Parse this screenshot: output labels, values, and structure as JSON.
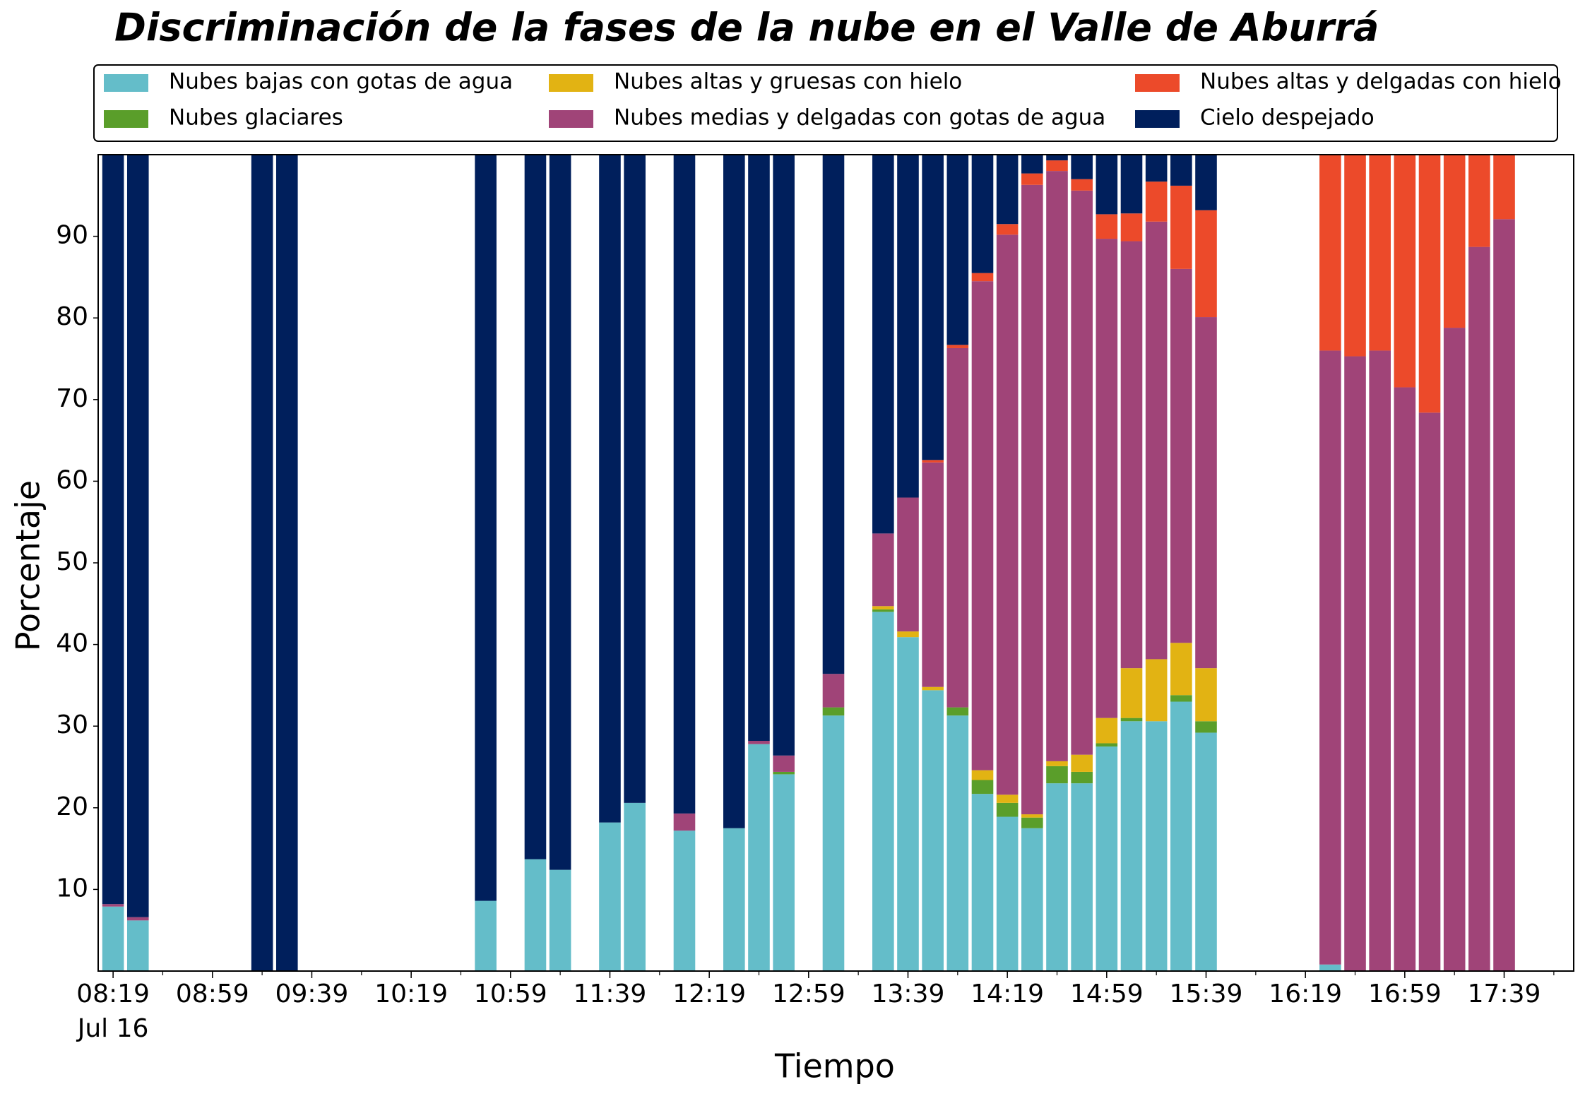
{
  "chart_data": {
    "type": "stacked-bar",
    "title": "Discriminación de la fases de la nube en el Valle de Aburrá",
    "xlabel": "Tiempo",
    "ylabel": "Porcentaje",
    "x": [
      "08:19",
      "08:29",
      "09:19",
      "09:29",
      "10:49",
      "11:09",
      "11:19",
      "11:39",
      "11:49",
      "12:09",
      "12:29",
      "12:39",
      "12:49",
      "13:09",
      "13:29",
      "13:39",
      "13:49",
      "13:59",
      "14:09",
      "14:19",
      "14:29",
      "14:39",
      "14:49",
      "14:59",
      "15:09",
      "15:19",
      "15:29",
      "15:39",
      "16:29",
      "16:39",
      "16:49",
      "16:59",
      "17:09",
      "17:19",
      "17:29",
      "17:39"
    ],
    "x_date_label": "Jul 16",
    "xlim": [
      "08:13",
      "18:07"
    ],
    "xticks": [
      "08:19",
      "08:59",
      "09:39",
      "10:19",
      "10:59",
      "11:39",
      "12:19",
      "12:59",
      "13:39",
      "14:19",
      "14:59",
      "15:39",
      "16:19",
      "16:59",
      "17:39"
    ],
    "ylim": [
      0,
      100
    ],
    "yticks": [
      10,
      20,
      30,
      40,
      50,
      60,
      70,
      80,
      90
    ],
    "grid": false,
    "legend_position": "top",
    "series": [
      {
        "name": "Nubes bajas con gotas de agua",
        "color": "#64bdc9",
        "values": [
          7.9,
          6.2,
          0,
          0,
          8.6,
          13.7,
          12.4,
          18.2,
          20.6,
          17.2,
          17.5,
          27.8,
          24.1,
          31.3,
          44.0,
          40.9,
          34.4,
          31.3,
          21.7,
          18.9,
          17.5,
          23.0,
          23.0,
          27.5,
          30.6,
          30.6,
          33.0,
          29.2,
          0.8,
          0,
          0,
          0,
          0,
          0,
          0,
          0
        ]
      },
      {
        "name": "Nubes glaciares",
        "color": "#5a9e2a",
        "values": [
          0,
          0,
          0,
          0,
          0,
          0,
          0,
          0,
          0,
          0,
          0,
          0,
          0.3,
          1.0,
          0.3,
          0,
          0,
          1.0,
          1.7,
          1.7,
          1.3,
          2.1,
          1.4,
          0.4,
          0.4,
          0,
          0.8,
          1.4,
          0,
          0,
          0,
          0,
          0,
          0,
          0,
          0
        ]
      },
      {
        "name": "Nubes altas y gruesas con hielo",
        "color": "#e2b313",
        "values": [
          0,
          0,
          0,
          0,
          0,
          0,
          0,
          0,
          0,
          0,
          0,
          0,
          0,
          0,
          0.4,
          0.7,
          0.4,
          0,
          1.2,
          1.0,
          0.4,
          0.6,
          2.1,
          3.1,
          6.1,
          7.6,
          6.4,
          6.5,
          0,
          0,
          0,
          0,
          0,
          0,
          0,
          0
        ]
      },
      {
        "name": "Nubes medias y delgadas con gotas de agua",
        "color": "#a04478",
        "values": [
          0.3,
          0.4,
          0,
          0,
          0,
          0,
          0,
          0,
          0,
          2.1,
          0,
          0.4,
          2.0,
          4.1,
          8.9,
          16.4,
          27.5,
          44.0,
          59.9,
          68.6,
          77.1,
          72.3,
          69.1,
          58.7,
          52.3,
          53.6,
          45.8,
          43.0,
          75.2,
          75.3,
          76.0,
          71.5,
          68.4,
          78.8,
          88.7,
          92.1
        ]
      },
      {
        "name": "Nubes altas y delgadas con hielo",
        "color": "#ec4a2a",
        "values": [
          0,
          0,
          0,
          0,
          0,
          0,
          0,
          0,
          0,
          0,
          0,
          0,
          0,
          0,
          0,
          0,
          0.3,
          0.4,
          1.0,
          1.3,
          1.4,
          1.3,
          1.4,
          3.0,
          3.4,
          4.9,
          10.2,
          13.1,
          24.0,
          24.7,
          24.0,
          28.5,
          31.6,
          21.2,
          11.3,
          7.9
        ]
      },
      {
        "name": "Cielo despejado",
        "color": "#001f5c",
        "values": [
          91.8,
          93.4,
          100,
          100,
          91.4,
          86.3,
          87.6,
          81.8,
          79.4,
          80.7,
          82.5,
          71.8,
          73.6,
          63.6,
          46.4,
          42.0,
          37.4,
          23.3,
          14.5,
          8.5,
          2.3,
          0.7,
          3.0,
          7.3,
          7.2,
          3.3,
          3.8,
          6.8,
          0,
          0,
          0,
          0,
          0,
          0,
          0,
          0
        ]
      }
    ]
  }
}
